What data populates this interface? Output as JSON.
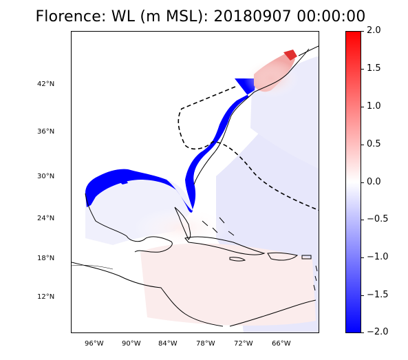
{
  "title": "Florence: WL (m MSL): 20180907 00:00:00",
  "colorbar": {
    "vmin": -2.0,
    "vmax": 2.0,
    "cmap": "bwr",
    "colors": {
      "max": "#ff0000",
      "mid": "#ffffff",
      "min": "#0000ff"
    },
    "ticks": [
      "2.0",
      "1.5",
      "1.0",
      "0.5",
      "0.0",
      "−0.5",
      "−1.0",
      "−1.5",
      "−2.0"
    ]
  },
  "map": {
    "lat_labels": [
      "42°N",
      "36°N",
      "30°N",
      "24°N",
      "18°N",
      "12°N"
    ],
    "lon_labels": [
      "96°W",
      "90°W",
      "84°W",
      "78°W",
      "72°W",
      "66°W"
    ],
    "extent": {
      "lon_min": -100,
      "lon_max": -60,
      "lat_min": 8,
      "lat_max": 48
    },
    "features": [
      "coastlines",
      "storm-track-dashed",
      "dry-area-blue",
      "surge-red-northeast"
    ]
  }
}
